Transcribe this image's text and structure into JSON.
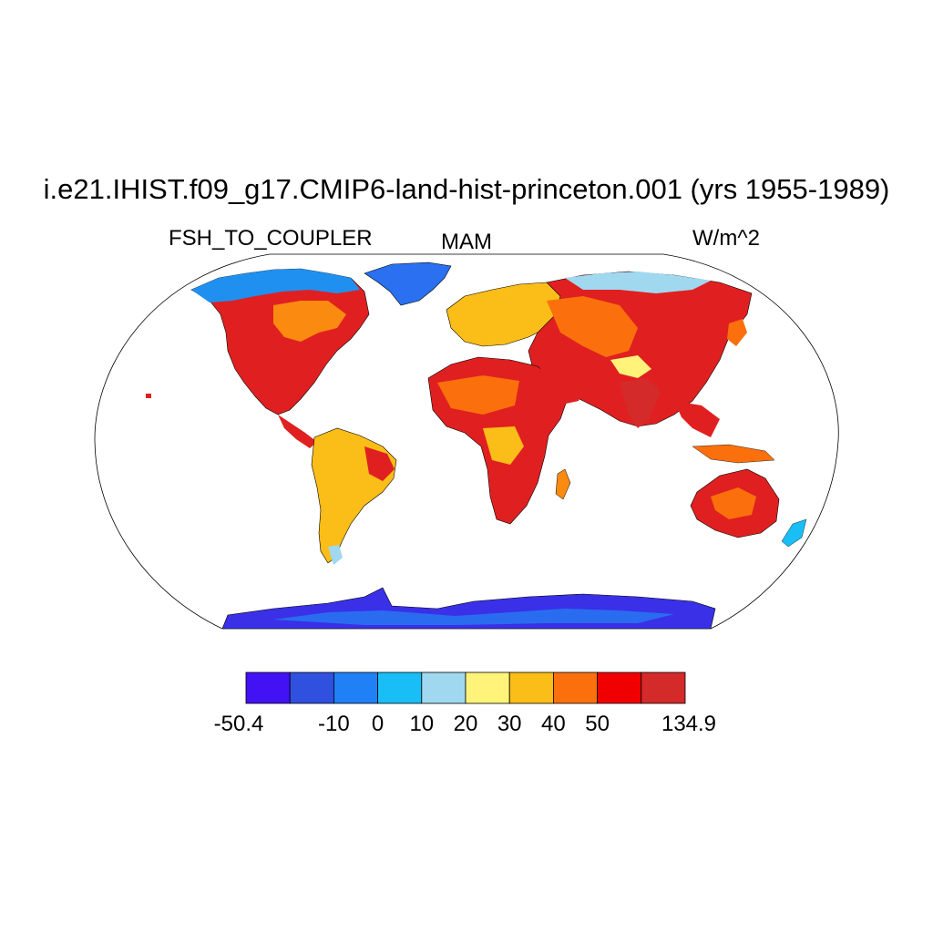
{
  "title": "i.e21.IHIST.f09_g17.CMIP6-land-hist-princeton.001 (yrs 1955-1989)",
  "subtitle_left": "FSH_TO_COUPLER",
  "subtitle_center": "MAM",
  "subtitle_right": "W/m^2",
  "projection": "robinson",
  "colorbar": {
    "colors": [
      "#4312f4",
      "#3050e0",
      "#2080f5",
      "#18bef5",
      "#a0d8f0",
      "#fff37a",
      "#fbbd17",
      "#fb700d",
      "#f00000",
      "#d42a2a"
    ],
    "labels": [
      "-50.4",
      "-10",
      "0",
      "10",
      "20",
      "30",
      "40",
      "50",
      "134.9"
    ]
  },
  "map_regions": [
    {
      "name": "North America",
      "level": "red-orange"
    },
    {
      "name": "Greenland",
      "level": "blue"
    },
    {
      "name": "Canadian Arctic",
      "level": "blue"
    },
    {
      "name": "South America",
      "level": "orange"
    },
    {
      "name": "Africa",
      "level": "red"
    },
    {
      "name": "Europe",
      "level": "orange"
    },
    {
      "name": "Asia",
      "level": "red"
    },
    {
      "name": "Siberia",
      "level": "light-blue"
    },
    {
      "name": "Australia",
      "level": "red-orange"
    },
    {
      "name": "Antarctica",
      "level": "dark-blue"
    }
  ]
}
